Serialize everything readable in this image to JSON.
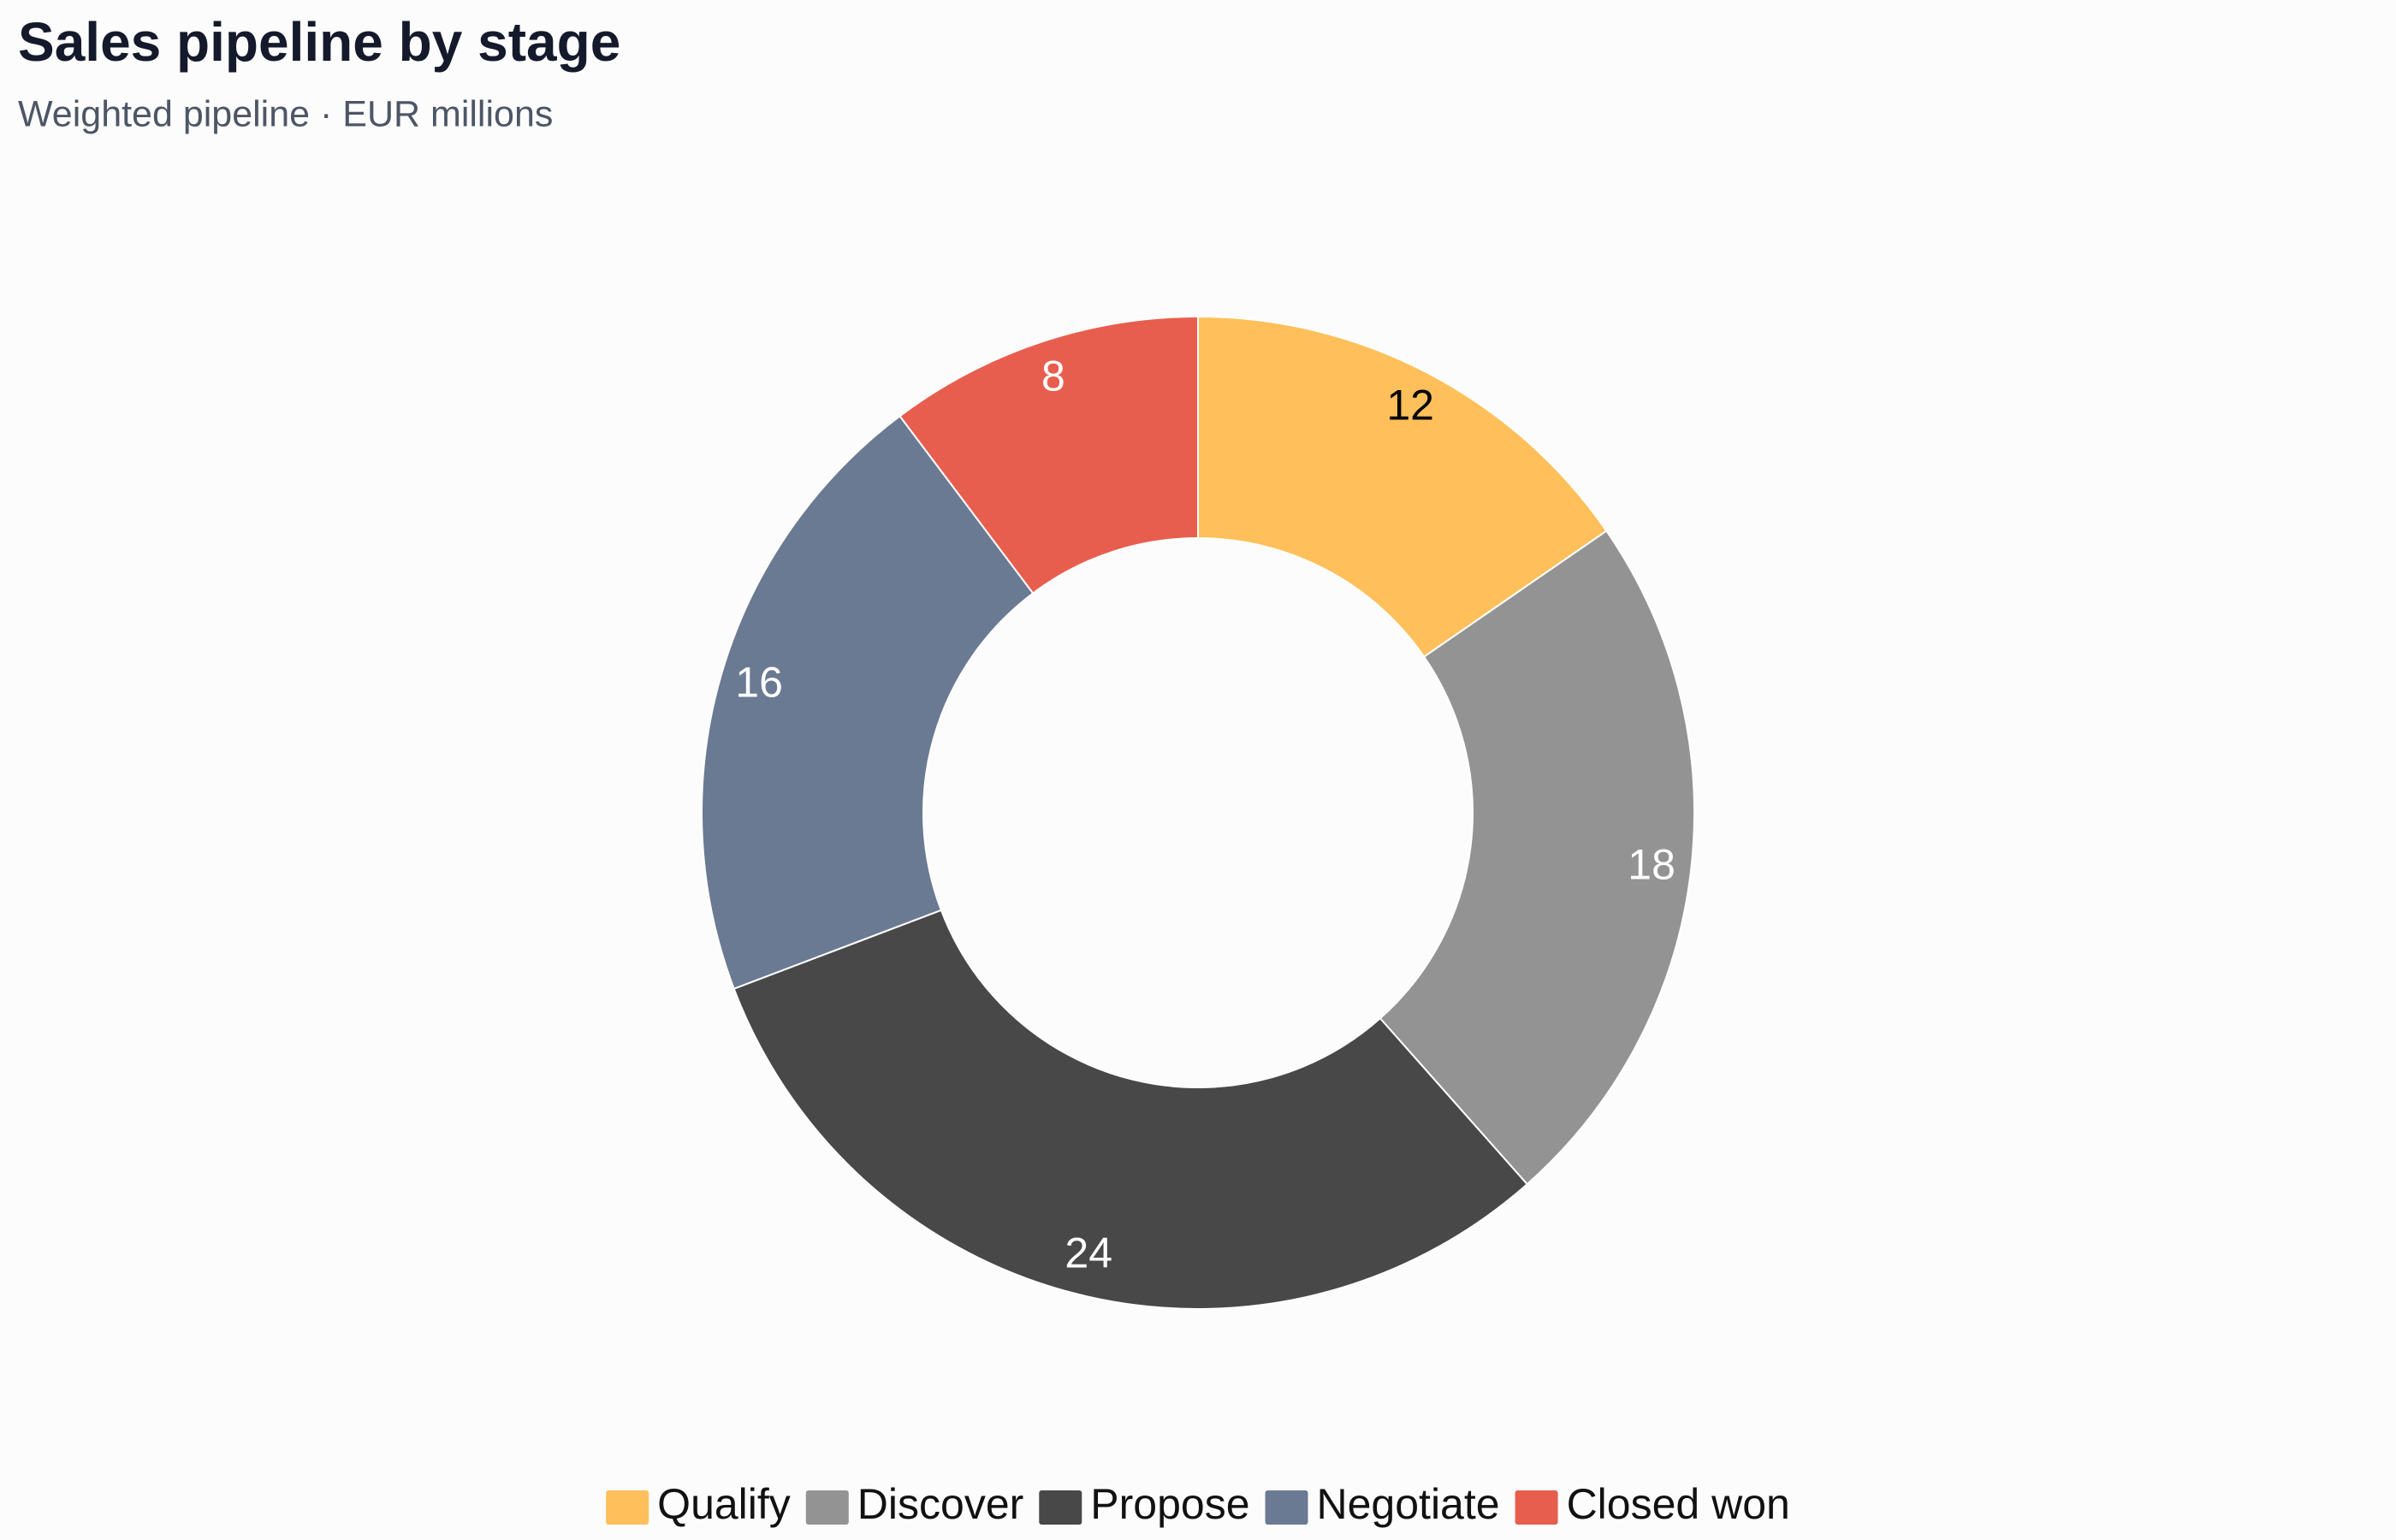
{
  "chart_data": {
    "type": "donut",
    "title": "Sales pipeline by stage",
    "subtitle": "Weighted pipeline · EUR millions",
    "categories": [
      "Qualify",
      "Discover",
      "Propose",
      "Negotiate",
      "Closed won"
    ],
    "values": [
      12,
      18,
      24,
      16,
      8
    ],
    "colors": [
      "#ffbf5a",
      "#939393",
      "#484848",
      "#6b7a93",
      "#e85e4e"
    ],
    "legend": "bottom"
  }
}
